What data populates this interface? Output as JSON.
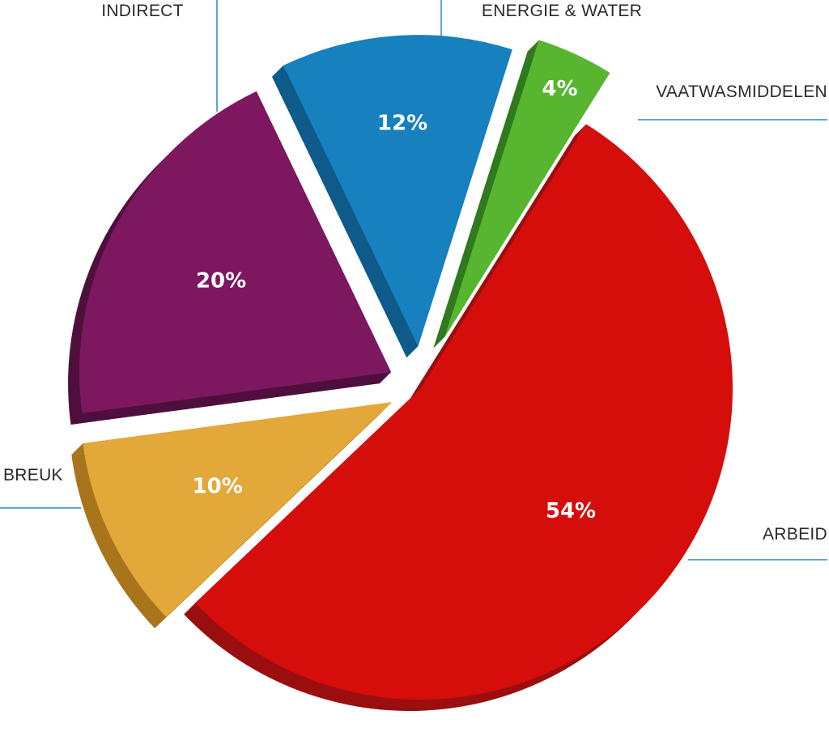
{
  "chart_data": {
    "type": "pie",
    "title": "",
    "slices": [
      {
        "label": "ARBEID",
        "value": 54,
        "value_label": "54%",
        "color": "#d50d0b",
        "side_color": "#9a0e10"
      },
      {
        "label": "BREUK",
        "value": 10,
        "value_label": "10%",
        "color": "#e3a83a",
        "side_color": "#a8741c"
      },
      {
        "label": "INDIRECT",
        "value": 20,
        "value_label": "20%",
        "color": "#7c1760",
        "side_color": "#4f0f3d"
      },
      {
        "label": "ENERGIE & WATER",
        "value": 12,
        "value_label": "12%",
        "color": "#1780be",
        "side_color": "#0e5a8a"
      },
      {
        "label": "VAATWASMIDDELEN",
        "value": 4,
        "value_label": "4%",
        "color": "#58b530",
        "side_color": "#2e7a1c"
      }
    ],
    "leader_color": "#5aa7d3",
    "style": "3d-exploded"
  }
}
